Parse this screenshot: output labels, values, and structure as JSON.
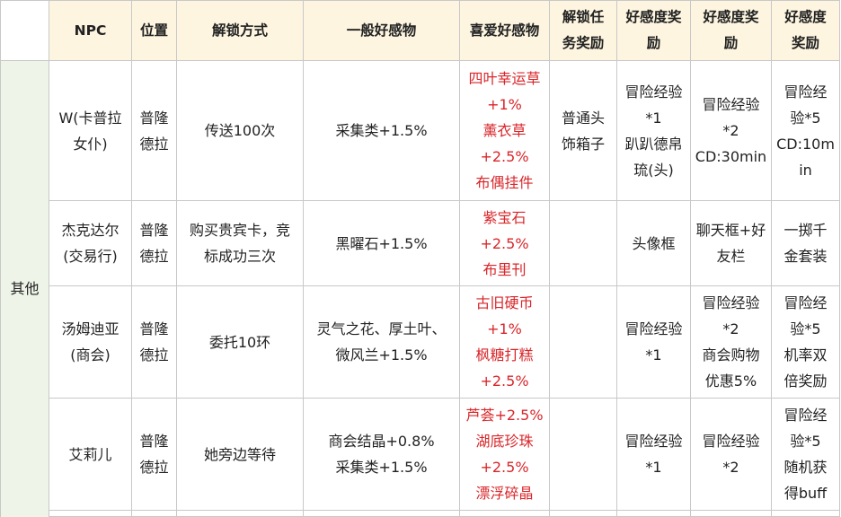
{
  "headers": {
    "npc": "NPC",
    "location": "位置",
    "unlock_method": "解锁方式",
    "general_gift": "一般好感物",
    "favorite_gift": "喜爱好感物",
    "unlock_task_reward": [
      "解锁任",
      "务奖励"
    ],
    "favor_reward_1": [
      "好感度奖",
      "励"
    ],
    "favor_reward_2": [
      "好感度奖",
      "励"
    ],
    "favor_reward_3": [
      "好感度",
      "奖励"
    ]
  },
  "category": "其他",
  "rows": [
    {
      "npc": [
        "W(卡普拉",
        "女仆)"
      ],
      "location": [
        "普隆",
        "德拉"
      ],
      "unlock_method": [
        "传送100次"
      ],
      "general_gift": [
        "采集类+1.5%"
      ],
      "favorite_gift": [
        "四叶幸运草",
        "+1%",
        "薰衣草",
        "+2.5%",
        "布偶挂件"
      ],
      "unlock_task_reward": [
        "普通头",
        "饰箱子"
      ],
      "favor_reward_1": [
        "冒险经验",
        "*1",
        "趴趴德帛",
        "琉(头)"
      ],
      "favor_reward_2": [
        "冒险经验",
        "*2",
        "CD:30min"
      ],
      "favor_reward_3": [
        "冒险经",
        "验*5",
        "CD:10m",
        "in"
      ]
    },
    {
      "npc": [
        "杰克达尔",
        "(交易行)"
      ],
      "location": [
        "普隆",
        "德拉"
      ],
      "unlock_method": [
        "购买贵宾卡，竞",
        "标成功三次"
      ],
      "general_gift": [
        "黑曜石+1.5%"
      ],
      "favorite_gift": [
        "紫宝石",
        "+2.5%",
        "布里刊"
      ],
      "unlock_task_reward": [],
      "favor_reward_1": [
        "头像框"
      ],
      "favor_reward_2": [
        "聊天框+好",
        "友栏"
      ],
      "favor_reward_3": [
        "一掷千",
        "金套装"
      ]
    },
    {
      "npc": [
        "汤姆迪亚",
        "(商会)"
      ],
      "location": [
        "普隆",
        "德拉"
      ],
      "unlock_method": [
        "委托10环"
      ],
      "general_gift": [
        "灵气之花、厚土叶、",
        "微风兰+1.5%"
      ],
      "favorite_gift": [
        "古旧硬币",
        "+1%",
        "枫糖打糕",
        "+2.5%"
      ],
      "unlock_task_reward": [],
      "favor_reward_1": [
        "冒险经验",
        "*1"
      ],
      "favor_reward_2": [
        "冒险经验",
        "*2",
        "商会购物",
        "优惠5%"
      ],
      "favor_reward_3": [
        "冒险经",
        "验*5",
        "机率双",
        "倍奖励"
      ]
    },
    {
      "npc": [
        "艾莉儿"
      ],
      "location": [
        "普隆",
        "德拉"
      ],
      "unlock_method": [
        "她旁边等待"
      ],
      "general_gift": [
        "商会结晶+0.8%",
        "采集类+1.5%"
      ],
      "favorite_gift": [
        "芦荟+2.5%",
        "湖底珍珠",
        "+2.5%",
        "漂浮碎晶"
      ],
      "unlock_task_reward": [],
      "favor_reward_1": [
        "冒险经验",
        "*1"
      ],
      "favor_reward_2": [
        "冒险经验",
        "*2"
      ],
      "favor_reward_3": [
        "冒险经",
        "验*5",
        "随机获",
        "得buff"
      ]
    }
  ]
}
